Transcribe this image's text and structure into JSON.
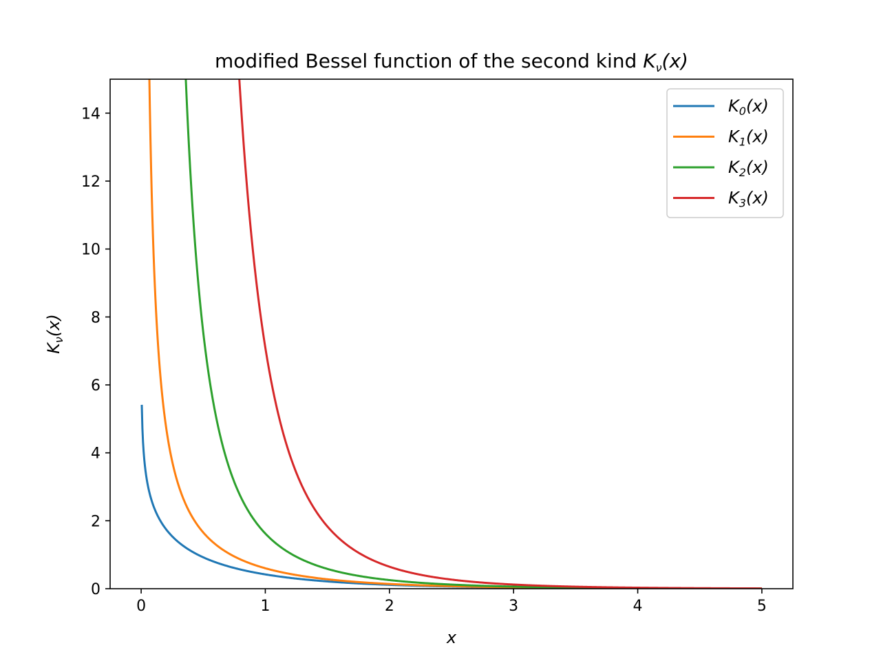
{
  "chart_data": {
    "type": "line",
    "title_prefix": "modified Bessel function of the second kind ",
    "title_math": {
      "base": "K",
      "sub": "ν",
      "arg": "(x)"
    },
    "xlabel": "x",
    "ylabel": {
      "base": "K",
      "sub": "ν",
      "arg": "(x)"
    },
    "xlim": [
      -0.25,
      5.25
    ],
    "ylim": [
      0,
      15
    ],
    "xticks": [
      0,
      1,
      2,
      3,
      4,
      5
    ],
    "xtick_labels": [
      "0",
      "1",
      "2",
      "3",
      "4",
      "5"
    ],
    "yticks": [
      0,
      2,
      4,
      6,
      8,
      10,
      12,
      14
    ],
    "ytick_labels": [
      "0",
      "2",
      "4",
      "6",
      "8",
      "10",
      "12",
      "14"
    ],
    "grid": false,
    "legend_position": "top-right",
    "series": [
      {
        "legend_base": "K",
        "legend_sub": "0",
        "legend_arg": "(x)",
        "color": "#1f77b4",
        "order": 0,
        "x_min": 0.005
      },
      {
        "legend_base": "K",
        "legend_sub": "1",
        "legend_arg": "(x)",
        "color": "#ff7f0e",
        "order": 1,
        "x_min": 0.005
      },
      {
        "legend_base": "K",
        "legend_sub": "2",
        "legend_arg": "(x)",
        "color": "#2ca02c",
        "order": 2,
        "x_min": 0.005
      },
      {
        "legend_base": "K",
        "legend_sub": "3",
        "legend_arg": "(x)",
        "color": "#d62728",
        "order": 3,
        "x_min": 0.005
      }
    ],
    "x_max": 5
  }
}
